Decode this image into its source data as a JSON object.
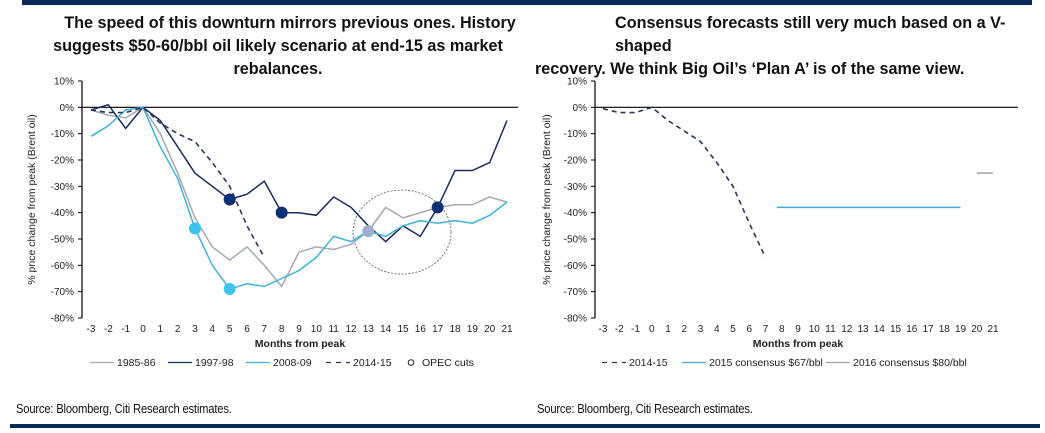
{
  "left_panel": {
    "title_line1": "The speed of this downturn mirrors previous ones. History",
    "title_line2": "suggests $50-60/bbl oil likely scenario at end-15 as market rebalances.",
    "source": "Source: Bloomberg, Citi Research estimates."
  },
  "right_panel": {
    "title_line1": "Consensus forecasts still very much based on a V-shaped",
    "title_line2": "recovery. We think Big Oil’s ‘Plan A’ is of the same view.",
    "source": "Source: Bloomberg, Citi Research estimates."
  },
  "colors": {
    "brand_bar": "#0b2a5b",
    "series_1985": "#a3a9b5",
    "series_1997": "#1a2b5e",
    "series_2008": "#3fb1d9",
    "series_2014": "#2b3557",
    "opec_navy": "#0d2f73",
    "opec_cyan": "#3cc3ee",
    "opec_grey": "#9fb0cc",
    "consensus_2015": "#3fa9d4",
    "consensus_2016": "#9ea4ad"
  },
  "chart_data": [
    {
      "type": "line",
      "title": "",
      "xlabel": "Months from peak",
      "ylabel": "% price change from peak (Brent oil)",
      "x": [
        -3,
        -2,
        -1,
        0,
        1,
        2,
        3,
        4,
        5,
        6,
        7,
        8,
        9,
        10,
        11,
        12,
        13,
        14,
        15,
        16,
        17,
        18,
        19,
        20,
        21
      ],
      "xticks": [
        "-3",
        "-2",
        "-1",
        "0",
        "1",
        "2",
        "3",
        "4",
        "5",
        "6",
        "7",
        "8",
        "9",
        "10",
        "11",
        "12",
        "13",
        "14",
        "15",
        "16",
        "17",
        "18",
        "19",
        "20",
        "21"
      ],
      "ylim": [
        -80,
        10
      ],
      "yticks": [
        "10%",
        "0%",
        "-10%",
        "-20%",
        "-30%",
        "-40%",
        "-50%",
        "-60%",
        "-70%",
        "-80%"
      ],
      "yticks_values": [
        10,
        0,
        -10,
        -20,
        -30,
        -40,
        -50,
        -60,
        -70,
        -80
      ],
      "grid": false,
      "legend_position": "bottom",
      "series": [
        {
          "name": "1985-86",
          "style": "solid",
          "color_key": "series_1985",
          "values": [
            -1,
            -3,
            -4,
            0,
            -10,
            -25,
            -42,
            -53,
            -58,
            -53,
            -60,
            -68,
            -55,
            -53,
            -54,
            -52,
            -47,
            -38,
            -42,
            -40,
            -38,
            -37,
            -37,
            -34,
            -36
          ]
        },
        {
          "name": "1997-98",
          "style": "solid",
          "color_key": "series_1997",
          "values": [
            -1,
            1,
            -8,
            0,
            -5,
            -15,
            -25,
            -30,
            -35,
            -33,
            -28,
            -40,
            -40,
            -41,
            -34,
            -38,
            -45,
            -51,
            -45,
            -49,
            -38,
            -24,
            -24,
            -21,
            -5
          ]
        },
        {
          "name": "2008-09",
          "style": "solid",
          "color_key": "series_2008",
          "values": [
            -11,
            -7,
            -1,
            0,
            -15,
            -27,
            -46,
            -60,
            -69,
            -67,
            -68,
            -65,
            -62,
            -57,
            -49,
            -51,
            -47,
            -49,
            -45,
            -43,
            -44,
            -43,
            -44,
            -41,
            -36
          ]
        },
        {
          "name": "2014-15",
          "style": "dashed",
          "color_key": "series_2014",
          "values": [
            -1,
            -2,
            -2,
            0,
            -6,
            -10,
            -13,
            -21,
            -30,
            -45,
            -57,
            null,
            null,
            null,
            null,
            null,
            null,
            null,
            null,
            null,
            null,
            null,
            null,
            null,
            null
          ]
        }
      ],
      "markers": {
        "name": "OPEC cuts",
        "points": [
          {
            "x": 5,
            "y": -35,
            "color_key": "opec_navy"
          },
          {
            "x": 8,
            "y": -40,
            "color_key": "opec_navy"
          },
          {
            "x": 17,
            "y": -38,
            "color_key": "opec_navy"
          },
          {
            "x": 3,
            "y": -46,
            "color_key": "opec_cyan"
          },
          {
            "x": 5,
            "y": -69,
            "color_key": "opec_cyan"
          },
          {
            "x": 13,
            "y": -47,
            "color_key": "opec_grey"
          }
        ]
      },
      "annotation": {
        "type": "ellipse",
        "center_x": 15,
        "center_y": -47,
        "note": "dotted circle highlighting months 13-17"
      },
      "legend": [
        "1985-86",
        "1997-98",
        "2008-09",
        "2014-15",
        "OPEC cuts"
      ]
    },
    {
      "type": "line",
      "title": "",
      "xlabel": "Months from peak",
      "ylabel": "% price change from peak (Brent oil)",
      "x": [
        -3,
        -2,
        -1,
        0,
        1,
        2,
        3,
        4,
        5,
        6,
        7,
        8,
        9,
        10,
        11,
        12,
        13,
        14,
        15,
        16,
        17,
        18,
        19,
        20,
        21
      ],
      "xticks": [
        "-3",
        "-2",
        "-1",
        "0",
        "1",
        "2",
        "3",
        "4",
        "5",
        "6",
        "7",
        "8",
        "9",
        "10",
        "11",
        "12",
        "13",
        "14",
        "15",
        "16",
        "17",
        "18",
        "19",
        "20",
        "21"
      ],
      "ylim": [
        -80,
        10
      ],
      "yticks": [
        "10%",
        "0%",
        "-10%",
        "-20%",
        "-30%",
        "-40%",
        "-50%",
        "-60%",
        "-70%",
        "-80%"
      ],
      "yticks_values": [
        10,
        0,
        -10,
        -20,
        -30,
        -40,
        -50,
        -60,
        -70,
        -80
      ],
      "grid": false,
      "legend_position": "bottom",
      "series": [
        {
          "name": "2014-15",
          "style": "dashed",
          "color_key": "series_2014",
          "values": [
            -0.5,
            -2,
            -2,
            0,
            -5,
            -9,
            -13,
            -21,
            -30,
            -44,
            -57,
            null,
            null,
            null,
            null,
            null,
            null,
            null,
            null,
            null,
            null,
            null,
            null,
            null,
            null
          ]
        },
        {
          "name": "2015 consensus $67/bbl",
          "style": "solid",
          "color_key": "consensus_2015",
          "segment": {
            "x_start": 7.7,
            "x_end": 19,
            "value": -38
          }
        },
        {
          "name": "2016 consensus $80/bbl",
          "style": "solid",
          "color_key": "consensus_2016",
          "segment": {
            "x_start": 20,
            "x_end": 21,
            "value": -25
          }
        }
      ],
      "legend": [
        "2014-15",
        "2015 consensus $67/bbl",
        "2016 consensus $80/bbl"
      ]
    }
  ]
}
